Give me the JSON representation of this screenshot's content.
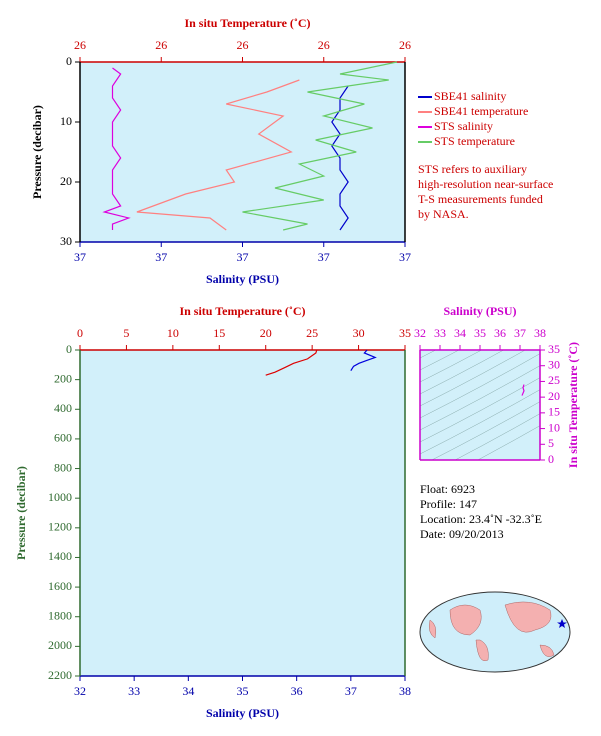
{
  "chart_data": [
    {
      "type": "profile",
      "x2_label": "In situ Temperature (˚C)",
      "x_label": "Salinity (PSU)",
      "y_label": "Pressure (decibar)",
      "x2lim": [
        25.8,
        26.2
      ],
      "x2ticks": [
        {
          "value": 25.8,
          "label": "26"
        },
        {
          "value": 25.9,
          "label": "26"
        },
        {
          "value": 26.0,
          "label": "26"
        },
        {
          "value": 26.1,
          "label": "26"
        },
        {
          "value": 26.2,
          "label": "26"
        }
      ],
      "xlim": [
        36.8,
        37.2
      ],
      "xticks": [
        {
          "value": 36.8,
          "label": "37"
        },
        {
          "value": 36.9,
          "label": "37"
        },
        {
          "value": 37.0,
          "label": "37"
        },
        {
          "value": 37.1,
          "label": "37"
        },
        {
          "value": 37.2,
          "label": "37"
        }
      ],
      "ylim": [
        0,
        30
      ],
      "yticks": [
        0,
        10,
        20,
        30
      ],
      "y_reversed": true,
      "series": [
        {
          "name": "SBE41 salinity",
          "color": "#0000cc",
          "axis": "x",
          "pressure": [
            4,
            6,
            8,
            10,
            12,
            14,
            16,
            18,
            20,
            22,
            24,
            26,
            28
          ],
          "values": [
            37.13,
            37.12,
            37.12,
            37.11,
            37.12,
            37.11,
            37.12,
            37.12,
            37.13,
            37.12,
            37.12,
            37.13,
            37.12
          ]
        },
        {
          "name": "SBE41 temperature",
          "color": "#ff8080",
          "axis": "x2",
          "pressure": [
            3,
            5,
            7,
            9,
            12,
            15,
            18,
            20,
            22,
            25,
            26,
            28
          ],
          "values": [
            26.07,
            26.03,
            25.98,
            26.05,
            26.02,
            26.06,
            25.98,
            25.99,
            25.93,
            25.87,
            25.96,
            25.98
          ]
        },
        {
          "name": "STS salinity",
          "color": "#dd00dd",
          "axis": "x",
          "pressure": [
            1,
            2,
            4,
            6,
            8,
            10,
            12,
            14,
            16,
            18,
            20,
            22,
            24,
            25,
            26,
            27,
            28
          ],
          "values": [
            36.84,
            36.85,
            36.84,
            36.84,
            36.85,
            36.84,
            36.84,
            36.84,
            36.85,
            36.84,
            36.84,
            36.84,
            36.85,
            36.83,
            36.86,
            36.84,
            36.84
          ]
        },
        {
          "name": "STS temperature",
          "color": "#66cc66",
          "axis": "x2",
          "pressure": [
            0,
            2,
            3,
            5,
            7,
            9,
            11,
            13,
            15,
            17,
            19,
            21,
            23,
            25,
            27,
            28
          ],
          "values": [
            26.19,
            26.12,
            26.18,
            26.08,
            26.15,
            26.1,
            26.16,
            26.09,
            26.14,
            26.07,
            26.1,
            26.04,
            26.1,
            26.0,
            26.08,
            26.05
          ]
        }
      ],
      "note": [
        "STS refers to auxiliary",
        "high-resolution near-surface",
        "T-S measurements funded",
        "by NASA."
      ]
    },
    {
      "type": "profile",
      "x2_label": "In situ Temperature (˚C)",
      "x_label": "Salinity (PSU)",
      "y_label": "Pressure (decibar)",
      "x2lim": [
        0,
        35
      ],
      "x2ticks": [
        0,
        5,
        10,
        15,
        20,
        25,
        30,
        35
      ],
      "xlim": [
        32,
        38
      ],
      "xticks": [
        32,
        33,
        34,
        35,
        36,
        37,
        38
      ],
      "ylim": [
        0,
        2200
      ],
      "yticks": [
        0,
        200,
        400,
        600,
        800,
        1000,
        1200,
        1400,
        1600,
        1800,
        2000,
        2200
      ],
      "y_reversed": true,
      "series": [
        {
          "color": "#dd0000",
          "axis": "x2",
          "pressure": [
            0,
            20,
            60,
            90,
            120,
            150,
            170
          ],
          "values": [
            25.5,
            25.4,
            24.5,
            23,
            22,
            21,
            20
          ]
        },
        {
          "color": "#0000dd",
          "axis": "x",
          "pressure": [
            0,
            20,
            50,
            70,
            90,
            110,
            140
          ],
          "values": [
            37.3,
            37.25,
            37.45,
            37.3,
            37.15,
            37.05,
            37.0
          ]
        }
      ],
      "annotations": [
        "Float:  6923",
        "Profile:  147",
        "Location:  23.4˚N  -32.3˚E",
        "Date:  09/20/2013"
      ]
    },
    {
      "type": "line",
      "x_label": "Salinity (PSU)",
      "y_label": "In situ Temperature (˚C)",
      "xlim": [
        32,
        38
      ],
      "xticks": [
        32,
        33,
        34,
        35,
        36,
        37,
        38
      ],
      "ylim": [
        0,
        35
      ],
      "yticks": [
        0,
        5,
        10,
        15,
        20,
        25,
        30,
        35
      ],
      "series": [
        {
          "color": "#dd00dd",
          "x": [
            37.1,
            37.2,
            37.15,
            37.2
          ],
          "values": [
            20.5,
            22,
            23,
            24
          ]
        }
      ]
    }
  ]
}
